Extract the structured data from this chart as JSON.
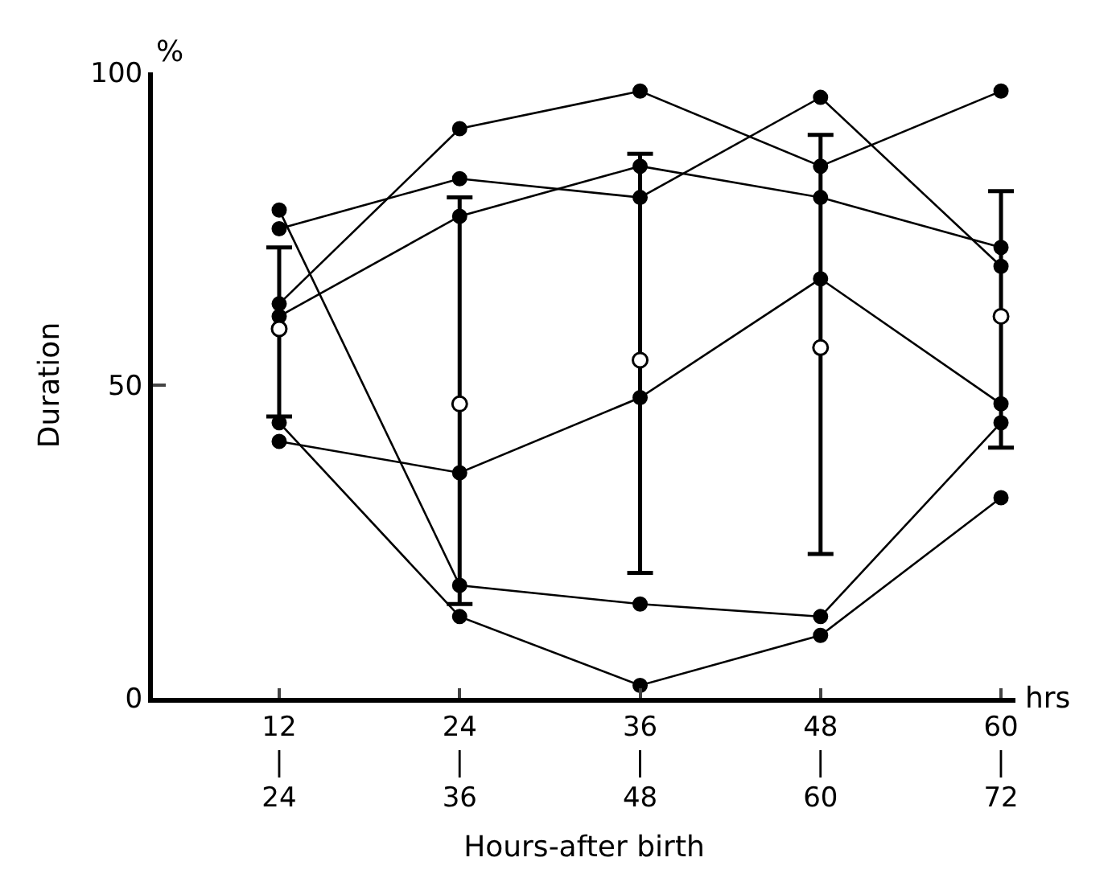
{
  "chart_data": {
    "type": "line",
    "xlabel": "Hours-after birth",
    "ylabel": "Duration",
    "categories": [
      "12\n|\n24",
      "24\n|\n36",
      "36\n|\n48",
      "48\n|\n60",
      "60\n|\n72"
    ],
    "ylim": [
      0,
      100
    ],
    "yticks": [
      0,
      50,
      100
    ],
    "marker": "circle",
    "line_style": "solid",
    "annotations": [
      "%",
      "hrs"
    ],
    "series": [
      {
        "color": "#000000",
        "values": [
          75,
          83,
          80,
          96,
          69
        ]
      },
      {
        "color": "#000000",
        "values": [
          61,
          77,
          85,
          80,
          72
        ]
      },
      {
        "color": "#000000",
        "values": [
          63,
          91,
          97,
          85,
          97
        ]
      },
      {
        "color": "#000000",
        "values": [
          78,
          18,
          15,
          13,
          44
        ]
      },
      {
        "color": "#000000",
        "values": [
          41,
          36,
          48,
          67,
          47
        ]
      },
      {
        "color": "#000000",
        "values": [
          44,
          13,
          2,
          10,
          32
        ]
      },
      {
        "type": "scatter",
        "color": "#ffffff",
        "values": [
          59,
          47,
          54,
          56,
          61
        ],
        "errors": [
          [
            45,
            72
          ],
          [
            15,
            80
          ],
          [
            20,
            87
          ],
          [
            23,
            90
          ],
          [
            40,
            81
          ]
        ]
      }
    ]
  }
}
